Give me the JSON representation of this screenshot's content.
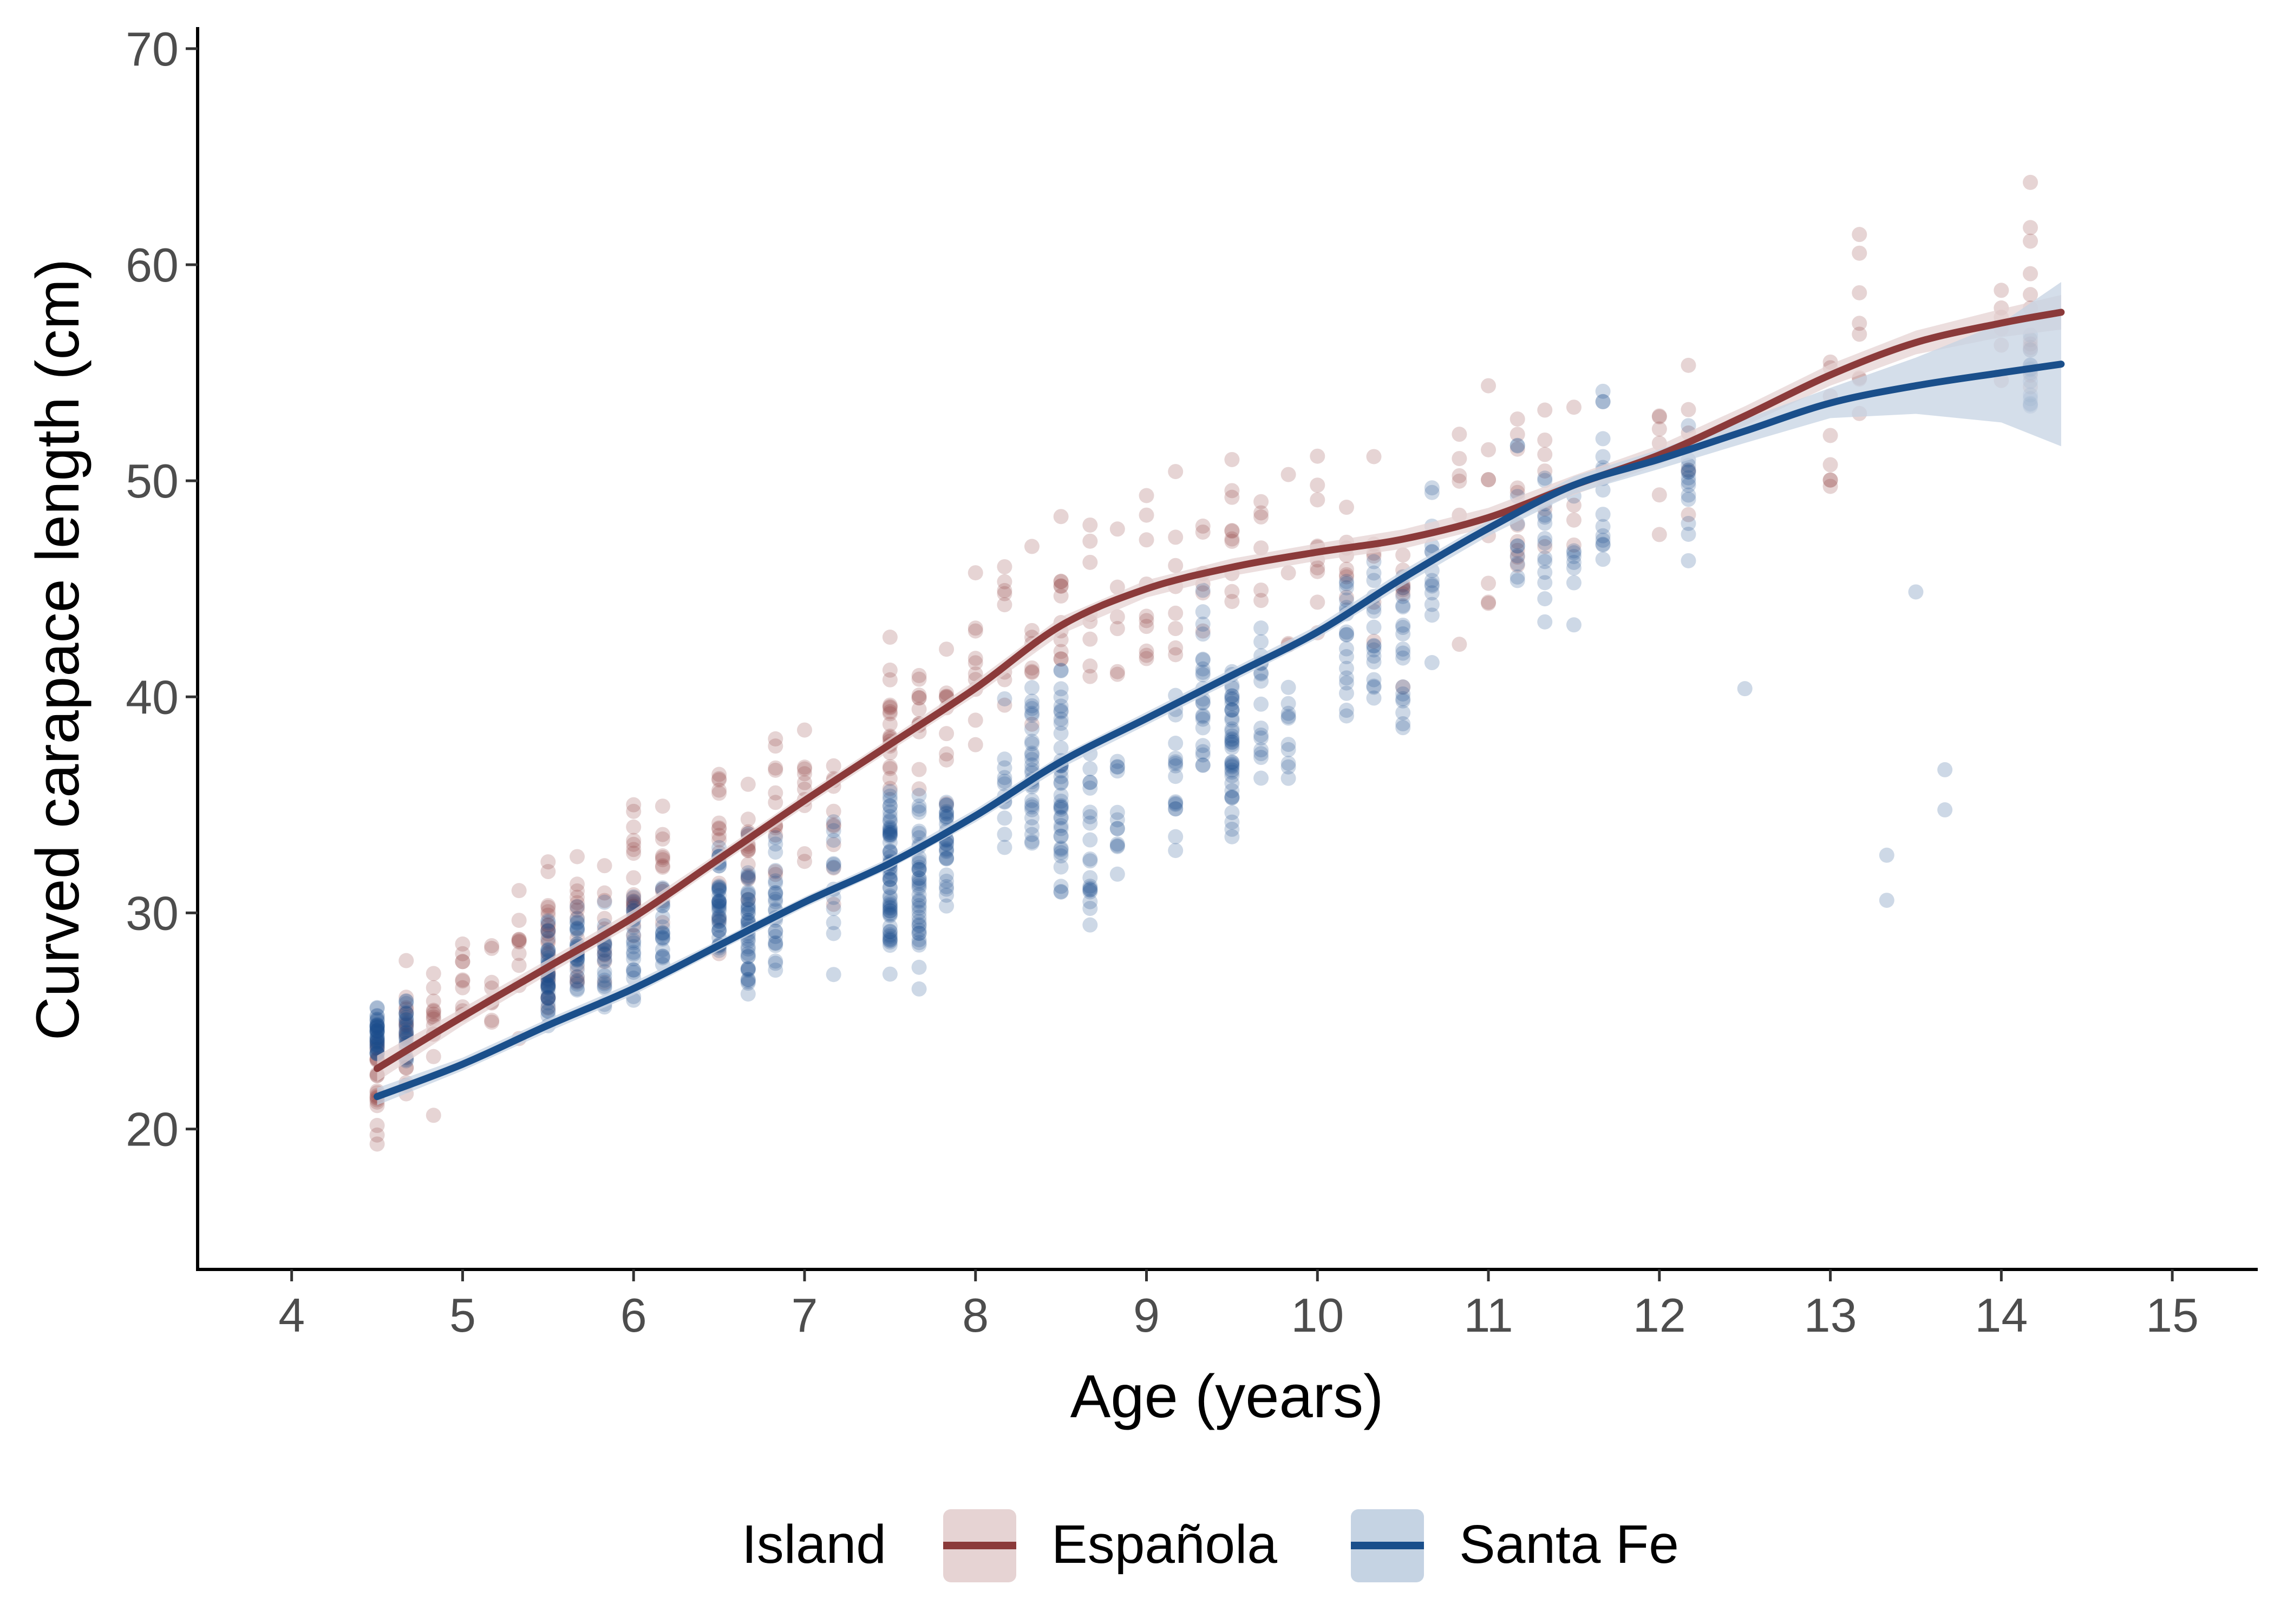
{
  "chart_data": {
    "type": "scatter",
    "title": "",
    "xlabel": "Age (years)",
    "ylabel": "Curved carapace length (cm)",
    "xlim": [
      3.45,
      15.5
    ],
    "ylim": [
      13.5,
      71
    ],
    "xticks": [
      "4",
      "5",
      "6",
      "7",
      "8",
      "9",
      "10",
      "11",
      "12",
      "13",
      "14",
      "15"
    ],
    "xtick_values": [
      4,
      5,
      6,
      7,
      8,
      9,
      10,
      11,
      12,
      13,
      14,
      15
    ],
    "yticks": [
      "20",
      "30",
      "40",
      "50",
      "60",
      "70"
    ],
    "ytick_values": [
      20,
      30,
      40,
      50,
      60,
      70
    ],
    "grid": false,
    "legend": {
      "title": "Island",
      "placement": "bottom",
      "entries": [
        "Española",
        "Santa Fe"
      ]
    },
    "series": [
      {
        "name": "Española",
        "color": "#8B3A3A",
        "band_color": "#E6D3D3",
        "smooth": {
          "x": [
            4.5,
            5.0,
            5.5,
            6.0,
            6.5,
            7.0,
            7.5,
            8.0,
            8.5,
            9.0,
            9.5,
            10.0,
            10.5,
            11.0,
            11.5,
            12.0,
            12.5,
            13.0,
            13.5,
            14.0,
            14.35
          ],
          "y": [
            22.8,
            25.2,
            27.5,
            29.8,
            32.5,
            35.2,
            37.8,
            40.4,
            43.3,
            45.0,
            46.0,
            46.7,
            47.3,
            48.3,
            49.8,
            51.2,
            53.0,
            54.9,
            56.4,
            57.3,
            57.8
          ]
        },
        "band_halfwidth": [
          0.6,
          0.4,
          0.35,
          0.35,
          0.3,
          0.3,
          0.3,
          0.35,
          0.4,
          0.4,
          0.4,
          0.4,
          0.45,
          0.45,
          0.45,
          0.45,
          0.45,
          0.5,
          0.55,
          0.65,
          0.8
        ],
        "scatter": {
          "ages": [
            4.5,
            4.67,
            4.83,
            5.0,
            5.17,
            5.33,
            5.5,
            5.67,
            5.83,
            6.0,
            6.17,
            6.5,
            6.67,
            6.83,
            7.0,
            7.17,
            7.5,
            7.67,
            7.83,
            8.0,
            8.17,
            8.33,
            8.5,
            8.67,
            8.83,
            9.0,
            9.17,
            9.33,
            9.5,
            9.67,
            9.83,
            10.0,
            10.17,
            10.33,
            10.5,
            10.83,
            11.0,
            11.17,
            11.33,
            11.5,
            12.0,
            12.17,
            13.0,
            13.17,
            14.0,
            14.17
          ],
          "mean": [
            22.0,
            24.0,
            25.0,
            26.0,
            27.0,
            27.5,
            29.0,
            29.0,
            30.0,
            31.0,
            31.5,
            33.0,
            34.0,
            36.0,
            35.5,
            35.0,
            38.0,
            39.0,
            39.5,
            41.0,
            42.5,
            43.5,
            44.0,
            44.5,
            45.0,
            45.0,
            45.0,
            46.0,
            46.5,
            46.0,
            46.0,
            46.5,
            46.5,
            47.0,
            46.0,
            48.5,
            48.0,
            50.0,
            50.0,
            49.0,
            51.0,
            52.0,
            54.0,
            55.5,
            57.0,
            57.5
          ],
          "spread": [
            3.0,
            3.0,
            3.0,
            2.8,
            2.8,
            2.8,
            3.0,
            3.0,
            3.0,
            3.5,
            3.5,
            3.5,
            3.5,
            3.5,
            3.2,
            3.2,
            3.5,
            3.5,
            3.5,
            4.0,
            4.0,
            4.0,
            4.0,
            4.0,
            4.0,
            4.0,
            4.0,
            4.0,
            4.0,
            4.0,
            4.0,
            4.0,
            4.0,
            4.0,
            4.0,
            4.5,
            4.5,
            4.5,
            4.5,
            4.5,
            4.5,
            4.5,
            5.0,
            5.0,
            5.0,
            5.0
          ],
          "count": [
            22,
            18,
            14,
            10,
            8,
            10,
            24,
            16,
            10,
            18,
            12,
            14,
            14,
            12,
            10,
            10,
            20,
            12,
            10,
            10,
            8,
            8,
            12,
            8,
            6,
            10,
            8,
            6,
            10,
            6,
            4,
            10,
            8,
            6,
            8,
            6,
            8,
            10,
            6,
            4,
            6,
            6,
            8,
            8,
            6,
            12
          ]
        }
      },
      {
        "name": "Santa Fe",
        "color": "#1A4F8B",
        "band_color": "#C5D3E3",
        "smooth": {
          "x": [
            4.5,
            5.0,
            5.5,
            6.0,
            6.5,
            7.0,
            7.5,
            8.0,
            8.5,
            9.0,
            9.5,
            10.0,
            10.5,
            11.0,
            11.5,
            12.0,
            12.5,
            13.0,
            13.5,
            14.0,
            14.35
          ],
          "y": [
            21.5,
            23.0,
            24.8,
            26.5,
            28.5,
            30.5,
            32.3,
            34.5,
            37.0,
            39.0,
            41.0,
            43.0,
            45.5,
            47.8,
            49.8,
            51.0,
            52.3,
            53.6,
            54.4,
            55.0,
            55.4
          ],
          "band_halfwidth": [
            0.4,
            0.3,
            0.3,
            0.3,
            0.25,
            0.25,
            0.25,
            0.3,
            0.3,
            0.3,
            0.3,
            0.3,
            0.35,
            0.35,
            0.4,
            0.45,
            0.55,
            0.7,
            1.3,
            2.3,
            3.8
          ]
        },
        "scatter": {
          "ages": [
            4.5,
            4.67,
            5.5,
            5.67,
            5.83,
            6.0,
            6.17,
            6.5,
            6.67,
            6.83,
            7.17,
            7.5,
            7.67,
            7.83,
            8.17,
            8.33,
            8.5,
            8.67,
            8.83,
            9.17,
            9.33,
            9.5,
            9.67,
            9.83,
            10.17,
            10.33,
            10.5,
            10.67,
            11.17,
            11.33,
            11.5,
            11.67,
            12.17,
            12.5,
            13.33,
            13.5,
            13.67,
            14.17
          ],
          "mean": [
            24.5,
            24.5,
            27.0,
            28.0,
            27.5,
            28.0,
            29.0,
            30.0,
            29.5,
            30.5,
            31.0,
            32.0,
            31.0,
            33.0,
            35.0,
            37.0,
            36.5,
            33.0,
            34.0,
            37.0,
            40.0,
            38.5,
            40.0,
            38.0,
            42.0,
            43.0,
            42.0,
            46.0,
            48.0,
            47.0,
            45.0,
            50.0,
            49.5,
            40.4,
            33.0,
            45.0,
            35.0,
            55.0
          ],
          "spread": [
            1.2,
            1.2,
            2.2,
            2.2,
            2.2,
            2.5,
            2.5,
            3.0,
            3.0,
            3.0,
            3.0,
            4.2,
            3.5,
            3.0,
            4.0,
            4.0,
            4.0,
            4.0,
            4.0,
            4.0,
            4.0,
            4.5,
            4.0,
            3.5,
            4.0,
            4.0,
            4.5,
            4.0,
            4.0,
            4.0,
            4.0,
            4.0,
            4.5,
            0.5,
            3.0,
            0.5,
            3.5,
            2.0
          ],
          "count": [
            40,
            24,
            40,
            30,
            20,
            22,
            18,
            40,
            40,
            24,
            12,
            60,
            40,
            28,
            12,
            28,
            40,
            20,
            12,
            16,
            22,
            40,
            16,
            10,
            18,
            16,
            18,
            14,
            10,
            14,
            8,
            16,
            14,
            1,
            2,
            1,
            2,
            14
          ]
        }
      }
    ]
  }
}
